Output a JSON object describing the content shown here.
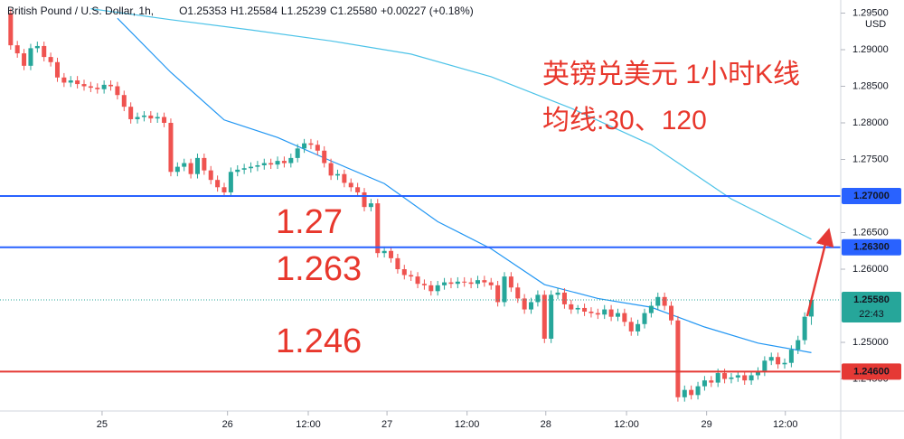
{
  "chart_data": {
    "type": "candlestick",
    "header": {
      "symbol": "British Pound / U.S. Dollar, 1h,",
      "items": [
        {
          "label": "O",
          "value": "1.25353"
        },
        {
          "label": "H",
          "value": "1.25584"
        },
        {
          "label": "L",
          "value": "1.25239"
        },
        {
          "label": "C",
          "value": "1.25580"
        }
      ],
      "change": "+0.00227 (+0.18%)"
    },
    "currency": "USD",
    "annotations": {
      "title": "英镑兑美元 1小时K线",
      "subtitle": "均线:30、120",
      "labels": [
        "1.27",
        "1.263",
        "1.246"
      ]
    },
    "up_color": "#26a69a",
    "down_color": "#ef5350",
    "xlim": [
      -1.6,
      124.4
    ],
    "xticks": [
      {
        "value": 13.7,
        "label": "25"
      },
      {
        "value": 32.5,
        "label": "26"
      },
      {
        "value": 44.6,
        "label": "12:00"
      },
      {
        "value": 56.4,
        "label": "27"
      },
      {
        "value": 68.4,
        "label": "12:00"
      },
      {
        "value": 80.2,
        "label": "28"
      },
      {
        "value": 92.3,
        "label": "12:00"
      },
      {
        "value": 104.3,
        "label": "29"
      },
      {
        "value": 116.1,
        "label": "12:00"
      }
    ],
    "ylim": [
      1.24062,
      1.29679
    ],
    "yticks": [
      {
        "value": 1.245,
        "label": "1.24500"
      },
      {
        "value": 1.25,
        "label": "1.25000"
      },
      {
        "value": 1.26,
        "label": "1.26000"
      },
      {
        "value": 1.265,
        "label": "1.26500"
      },
      {
        "value": 1.275,
        "label": "1.27500"
      },
      {
        "value": 1.28,
        "label": "1.28000"
      },
      {
        "value": 1.285,
        "label": "1.28500"
      },
      {
        "value": 1.29,
        "label": "1.29000"
      },
      {
        "value": 1.295,
        "label": "1.29500"
      }
    ],
    "levels": [
      {
        "value": 1.27,
        "label": "1.27000",
        "color": "#2962ff"
      },
      {
        "value": 1.263,
        "label": "1.26300",
        "color": "#2962ff"
      },
      {
        "value": 1.246,
        "label": "1.24600",
        "color": "#e53935"
      }
    ],
    "last_price": {
      "value": 1.2558,
      "label": "1.25580",
      "countdown": "22:43",
      "color": "#26a69a"
    },
    "ohlc": [
      [
        1.295,
        1.2956,
        1.29,
        1.2906
      ],
      [
        1.2906,
        1.2912,
        1.2889,
        1.2895
      ],
      [
        1.2895,
        1.2901,
        1.2872,
        1.2878
      ],
      [
        1.2878,
        1.2908,
        1.2872,
        1.2902
      ],
      [
        1.2902,
        1.2911,
        1.2896,
        1.2905
      ],
      [
        1.2905,
        1.2911,
        1.2884,
        1.289
      ],
      [
        1.289,
        1.2896,
        1.2877,
        1.2883
      ],
      [
        1.2883,
        1.2889,
        1.2856,
        1.2862
      ],
      [
        1.2862,
        1.2868,
        1.2849,
        1.2855
      ],
      [
        1.2855,
        1.2864,
        1.2849,
        1.2858
      ],
      [
        1.2858,
        1.2864,
        1.2847,
        1.2853
      ],
      [
        1.2853,
        1.2859,
        1.2844,
        1.285
      ],
      [
        1.285,
        1.2856,
        1.2842,
        1.2848
      ],
      [
        1.2848,
        1.2854,
        1.284,
        1.2846
      ],
      [
        1.2846,
        1.2858,
        1.284,
        1.2852
      ],
      [
        1.2852,
        1.2858,
        1.2844,
        1.285
      ],
      [
        1.285,
        1.2856,
        1.2832,
        1.2838
      ],
      [
        1.2838,
        1.2844,
        1.2816,
        1.2822
      ],
      [
        1.2822,
        1.2828,
        1.2799,
        1.2805
      ],
      [
        1.2805,
        1.2814,
        1.2799,
        1.2808
      ],
      [
        1.2808,
        1.2816,
        1.2802,
        1.281
      ],
      [
        1.281,
        1.2816,
        1.28,
        1.2806
      ],
      [
        1.2806,
        1.2814,
        1.28,
        1.2808
      ],
      [
        1.2808,
        1.2814,
        1.2794,
        1.28
      ],
      [
        1.28,
        1.2806,
        1.2727,
        1.2733
      ],
      [
        1.2733,
        1.2746,
        1.2727,
        1.274
      ],
      [
        1.274,
        1.2751,
        1.2734,
        1.2745
      ],
      [
        1.2745,
        1.2751,
        1.2724,
        1.273
      ],
      [
        1.273,
        1.2758,
        1.2724,
        1.2752
      ],
      [
        1.2752,
        1.2758,
        1.2729,
        1.2735
      ],
      [
        1.2735,
        1.2741,
        1.2716,
        1.2722
      ],
      [
        1.2722,
        1.2728,
        1.2706,
        1.2712
      ],
      [
        1.2712,
        1.2718,
        1.2699,
        1.2705
      ],
      [
        1.2705,
        1.2739,
        1.2699,
        1.2733
      ],
      [
        1.2733,
        1.2742,
        1.2727,
        1.2736
      ],
      [
        1.2736,
        1.2744,
        1.273,
        1.2738
      ],
      [
        1.2738,
        1.2746,
        1.2732,
        1.274
      ],
      [
        1.274,
        1.2748,
        1.2734,
        1.2742
      ],
      [
        1.2742,
        1.2751,
        1.2736,
        1.2745
      ],
      [
        1.2745,
        1.2751,
        1.2737,
        1.2743
      ],
      [
        1.2743,
        1.2754,
        1.2737,
        1.2748
      ],
      [
        1.2748,
        1.2754,
        1.2739,
        1.2745
      ],
      [
        1.2745,
        1.2758,
        1.2739,
        1.2752
      ],
      [
        1.2752,
        1.2771,
        1.2746,
        1.2765
      ],
      [
        1.2765,
        1.2778,
        1.2759,
        1.2772
      ],
      [
        1.2772,
        1.2778,
        1.2764,
        1.277
      ],
      [
        1.277,
        1.2776,
        1.2756,
        1.2762
      ],
      [
        1.2762,
        1.2768,
        1.2739,
        1.2745
      ],
      [
        1.2745,
        1.2751,
        1.2722,
        1.2728
      ],
      [
        1.2728,
        1.2736,
        1.2722,
        1.273
      ],
      [
        1.273,
        1.2736,
        1.2712,
        1.2718
      ],
      [
        1.2718,
        1.2724,
        1.2706,
        1.2712
      ],
      [
        1.2712,
        1.2718,
        1.2699,
        1.2705
      ],
      [
        1.2705,
        1.2711,
        1.2679,
        1.2685
      ],
      [
        1.2685,
        1.2696,
        1.2679,
        1.269
      ],
      [
        1.269,
        1.2696,
        1.2616,
        1.2622
      ],
      [
        1.2622,
        1.2631,
        1.2616,
        1.2625
      ],
      [
        1.2625,
        1.2631,
        1.2609,
        1.2615
      ],
      [
        1.2615,
        1.2621,
        1.2594,
        1.26
      ],
      [
        1.26,
        1.2606,
        1.2586,
        1.2592
      ],
      [
        1.2592,
        1.2598,
        1.2584,
        1.259
      ],
      [
        1.259,
        1.2596,
        1.2574,
        1.258
      ],
      [
        1.258,
        1.2586,
        1.2572,
        1.2578
      ],
      [
        1.2578,
        1.2584,
        1.2564,
        1.257
      ],
      [
        1.257,
        1.2584,
        1.2564,
        1.2578
      ],
      [
        1.2578,
        1.2588,
        1.2572,
        1.2582
      ],
      [
        1.2582,
        1.2588,
        1.2574,
        1.258
      ],
      [
        1.258,
        1.2589,
        1.2574,
        1.2583
      ],
      [
        1.2583,
        1.2589,
        1.2576,
        1.2582
      ],
      [
        1.2582,
        1.2588,
        1.2574,
        1.258
      ],
      [
        1.258,
        1.2591,
        1.2574,
        1.2585
      ],
      [
        1.2585,
        1.2591,
        1.2576,
        1.2582
      ],
      [
        1.2582,
        1.2588,
        1.2572,
        1.2578
      ],
      [
        1.2578,
        1.2584,
        1.2549,
        1.2555
      ],
      [
        1.2555,
        1.2596,
        1.2549,
        1.259
      ],
      [
        1.259,
        1.2596,
        1.2569,
        1.2575
      ],
      [
        1.2575,
        1.2581,
        1.2554,
        1.256
      ],
      [
        1.256,
        1.2566,
        1.2539,
        1.2545
      ],
      [
        1.2545,
        1.2561,
        1.2539,
        1.2555
      ],
      [
        1.2555,
        1.2571,
        1.2549,
        1.2565
      ],
      [
        1.2565,
        1.2571,
        1.2499,
        1.2505
      ],
      [
        1.2505,
        1.2571,
        1.2499,
        1.2565
      ],
      [
        1.2565,
        1.2574,
        1.2559,
        1.2568
      ],
      [
        1.2568,
        1.2574,
        1.2546,
        1.2552
      ],
      [
        1.2552,
        1.2558,
        1.2539,
        1.2545
      ],
      [
        1.2545,
        1.2551,
        1.2539,
        1.2547
      ],
      [
        1.2547,
        1.2553,
        1.2536,
        1.2542
      ],
      [
        1.2542,
        1.2548,
        1.2534,
        1.254
      ],
      [
        1.254,
        1.2546,
        1.2532,
        1.2538
      ],
      [
        1.2538,
        1.2551,
        1.2532,
        1.2545
      ],
      [
        1.2545,
        1.2551,
        1.2529,
        1.2535
      ],
      [
        1.2535,
        1.2546,
        1.2529,
        1.254
      ],
      [
        1.254,
        1.2546,
        1.2522,
        1.2528
      ],
      [
        1.2528,
        1.2534,
        1.2509,
        1.2515
      ],
      [
        1.2515,
        1.2531,
        1.2509,
        1.2525
      ],
      [
        1.2525,
        1.2546,
        1.2519,
        1.254
      ],
      [
        1.254,
        1.2556,
        1.2534,
        1.255
      ],
      [
        1.255,
        1.2568,
        1.2544,
        1.2562
      ],
      [
        1.2562,
        1.2568,
        1.2544,
        1.255
      ],
      [
        1.255,
        1.2556,
        1.2524,
        1.253
      ],
      [
        1.253,
        1.2536,
        1.2419,
        1.2425
      ],
      [
        1.2425,
        1.2441,
        1.2419,
        1.2435
      ],
      [
        1.2435,
        1.2441,
        1.2422,
        1.2428
      ],
      [
        1.2428,
        1.2446,
        1.2422,
        1.244
      ],
      [
        1.244,
        1.2454,
        1.2434,
        1.2448
      ],
      [
        1.2448,
        1.2454,
        1.2439,
        1.2445
      ],
      [
        1.2445,
        1.2464,
        1.2439,
        1.2458
      ],
      [
        1.2458,
        1.2464,
        1.2444,
        1.245
      ],
      [
        1.245,
        1.2458,
        1.2444,
        1.2452
      ],
      [
        1.2452,
        1.2461,
        1.2446,
        1.2455
      ],
      [
        1.2455,
        1.2461,
        1.2442,
        1.2448
      ],
      [
        1.2448,
        1.2461,
        1.2442,
        1.2455
      ],
      [
        1.2455,
        1.2466,
        1.2449,
        1.246
      ],
      [
        1.246,
        1.2481,
        1.2454,
        1.2475
      ],
      [
        1.2475,
        1.2486,
        1.2469,
        1.248
      ],
      [
        1.248,
        1.2486,
        1.2464,
        1.247
      ],
      [
        1.247,
        1.2478,
        1.2464,
        1.2472
      ],
      [
        1.2472,
        1.2496,
        1.2466,
        1.249
      ],
      [
        1.249,
        1.2509,
        1.2484,
        1.2503
      ],
      [
        1.2503,
        1.2541,
        1.2497,
        1.2535
      ],
      [
        1.25353,
        1.25584,
        1.25239,
        1.2558
      ]
    ],
    "series": [
      {
        "color": "#2196f3",
        "x": [
          16,
          24,
          32,
          40,
          48,
          56,
          64,
          72,
          80,
          88,
          96,
          104,
          112,
          120
        ],
        "values": [
          1.2943,
          1.2869,
          1.2804,
          1.278,
          1.2748,
          1.2717,
          1.2665,
          1.2628,
          1.2579,
          1.256,
          1.2548,
          1.2521,
          1.2499,
          1.2486
        ]
      },
      {
        "color": "#4dc3e8",
        "x": [
          12,
          24,
          36,
          48,
          60,
          72,
          84,
          96,
          108,
          120
        ],
        "values": [
          1.2956,
          1.2941,
          1.2927,
          1.2912,
          1.2894,
          1.2863,
          1.282,
          1.277,
          1.2696,
          1.2641
        ]
      }
    ]
  }
}
